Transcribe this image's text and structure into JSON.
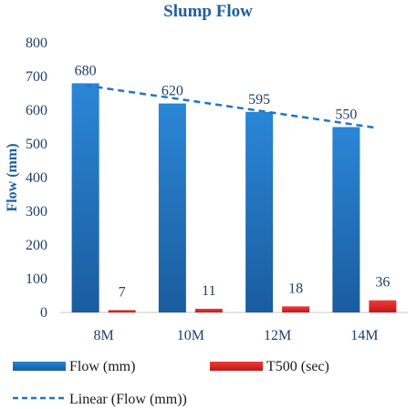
{
  "chart_data": {
    "type": "bar",
    "title": "Slump Flow",
    "xlabel": "",
    "ylabel": "Flow (mm)",
    "categories": [
      "8M",
      "10M",
      "12M",
      "14M"
    ],
    "ylim": [
      0,
      800
    ],
    "yticks": [
      0,
      100,
      200,
      300,
      400,
      500,
      600,
      700,
      800
    ],
    "grid": false,
    "legend_position": "bottom",
    "series": [
      {
        "name": "Flow (mm)",
        "values": [
          680,
          620,
          595,
          550
        ],
        "color": "#1f77c4"
      },
      {
        "name": "T500 (sec)",
        "values": [
          7,
          11,
          18,
          36
        ],
        "color": "#e03030"
      }
    ],
    "trendline": {
      "name": "Linear (Flow (mm))",
      "series": "Flow (mm)",
      "type": "linear",
      "color": "#1f77c4"
    }
  }
}
